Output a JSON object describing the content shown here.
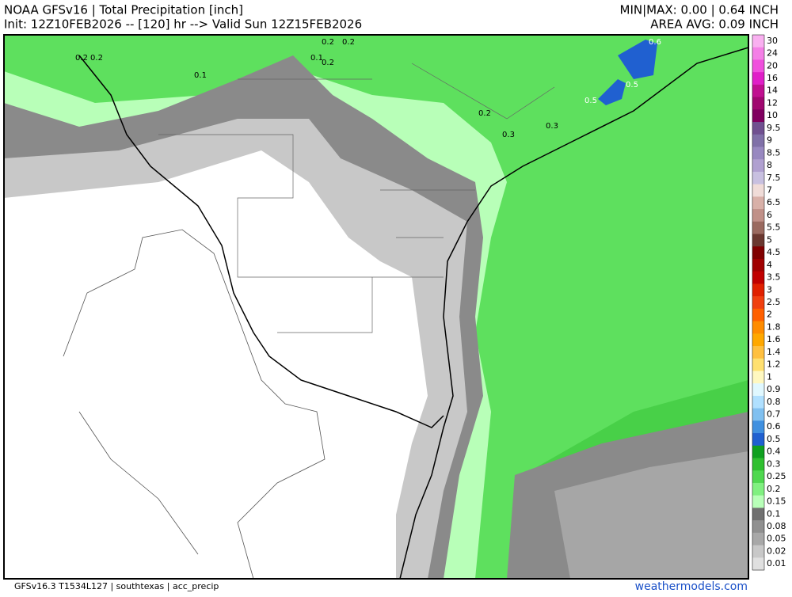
{
  "header": {
    "title": "NOAA GFSv16 | Total Precipitation [inch]",
    "init": "Init: 12Z10FEB2026 -- [120] hr --> Valid Sun 12Z15FEB2026",
    "minmax": "MIN|MAX: 0.00 | 0.64 INCH",
    "area_avg": "AREA AVG: 0.09 INCH"
  },
  "colorbar": {
    "labels": [
      "30",
      "24",
      "20",
      "16",
      "14",
      "12",
      "10",
      "9.5",
      "9",
      "8.5",
      "8",
      "7.5",
      "7",
      "6.5",
      "6",
      "5.5",
      "5",
      "4.5",
      "4",
      "3.5",
      "3",
      "2.5",
      "2",
      "1.8",
      "1.6",
      "1.4",
      "1.2",
      "1",
      "0.9",
      "0.8",
      "0.7",
      "0.6",
      "0.5",
      "0.4",
      "0.3",
      "0.25",
      "0.2",
      "0.15",
      "0.1",
      "0.08",
      "0.05",
      "0.02",
      "0.01"
    ],
    "colors": [
      "#f9b0f0",
      "#f480e6",
      "#f050dd",
      "#e020c8",
      "#c01090",
      "#a00870",
      "#800060",
      "#705090",
      "#8070a8",
      "#9888c0",
      "#b0a0d0",
      "#c8c0e0",
      "#f0dcd8",
      "#d8b0a8",
      "#c09088",
      "#9a6a60",
      "#6a3830",
      "#800000",
      "#a00000",
      "#c00000",
      "#e02000",
      "#f04010",
      "#ff6000",
      "#ff8c00",
      "#ffa800",
      "#ffc040",
      "#ffe070",
      "#fff8c0",
      "#e0f8ff",
      "#b0e0ff",
      "#80c0f0",
      "#4090e0",
      "#2060d0",
      "#10a020",
      "#30c030",
      "#50d850",
      "#80f080",
      "#b8ffb8",
      "#707070",
      "#909090",
      "#a8a8a8",
      "#c8c8c8",
      "#e0e0e0"
    ]
  },
  "contour_labels": [
    "0.2",
    "0.2",
    "0.1",
    "0.2",
    "0.2",
    "0.1",
    "0.2",
    "0.2",
    "0.3",
    "0.3",
    "0.6",
    "0.5",
    "0.5"
  ],
  "footer": {
    "model": "GFSv16.3 T1534L127 | southtexas | acc_precip",
    "site": "weathermodels.com"
  }
}
